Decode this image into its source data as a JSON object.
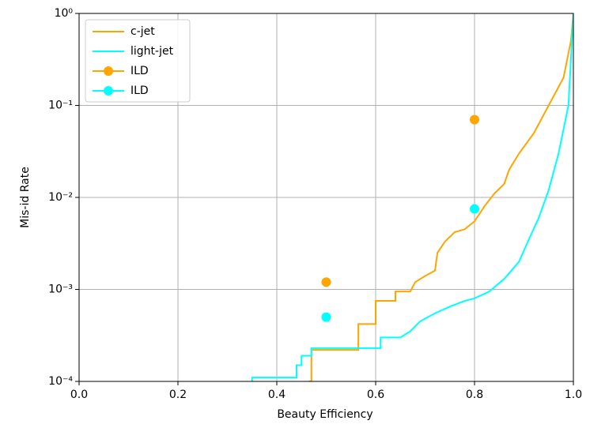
{
  "chart_data": {
    "type": "line",
    "xlabel": "Beauty Efficiency",
    "ylabel": "Mis-id Rate",
    "xlim": [
      0,
      1
    ],
    "ylim": [
      0.0001,
      1
    ],
    "yscale": "log",
    "grid": true,
    "legend": "upper left",
    "xticks": [
      {
        "value": 0,
        "label": "0.0"
      },
      0.2,
      0.4,
      0.6,
      0.8,
      {
        "value": 1,
        "label": "1.0"
      }
    ],
    "yticks": [
      {
        "value": 0.0001,
        "label": "10⁻⁴"
      },
      {
        "value": 0.001,
        "label": "10⁻³"
      },
      {
        "value": 0.01,
        "label": "10⁻²"
      },
      {
        "value": 0.1,
        "label": "10⁻¹"
      },
      {
        "value": 1,
        "label": "10⁰"
      }
    ],
    "series": [
      {
        "name": "c-jet",
        "type": "line",
        "color": "#ffa500",
        "x": [
          0.465,
          0.47,
          0.47,
          0.565,
          0.565,
          0.6,
          0.6,
          0.64,
          0.64,
          0.67,
          0.68,
          0.7,
          0.72,
          0.725,
          0.74,
          0.76,
          0.78,
          0.8,
          0.82,
          0.84,
          0.86,
          0.87,
          0.89,
          0.92,
          0.95,
          0.98,
          0.995,
          1.0
        ],
        "y": [
          0.0001,
          0.0001,
          0.00022,
          0.00022,
          0.00042,
          0.00042,
          0.00075,
          0.00075,
          0.00095,
          0.00095,
          0.0012,
          0.0014,
          0.0016,
          0.0025,
          0.0033,
          0.0042,
          0.0045,
          0.0055,
          0.008,
          0.011,
          0.014,
          0.02,
          0.03,
          0.05,
          0.1,
          0.2,
          0.5,
          1
        ]
      },
      {
        "name": "light-jet",
        "type": "line",
        "color": "#00ffff",
        "x": [
          0.35,
          0.35,
          0.44,
          0.44,
          0.45,
          0.45,
          0.47,
          0.47,
          0.61,
          0.61,
          0.65,
          0.67,
          0.69,
          0.72,
          0.75,
          0.78,
          0.8,
          0.83,
          0.86,
          0.89,
          0.91,
          0.93,
          0.95,
          0.97,
          0.99,
          1.0
        ],
        "y": [
          0.0001,
          0.00011,
          0.00011,
          0.00015,
          0.00015,
          0.00019,
          0.00019,
          0.00023,
          0.00023,
          0.0003,
          0.0003,
          0.00035,
          0.00045,
          0.00055,
          0.00065,
          0.00075,
          0.0008,
          0.00095,
          0.0013,
          0.002,
          0.0035,
          0.006,
          0.012,
          0.03,
          0.1,
          1
        ]
      },
      {
        "name": "ILD",
        "type": "scatter",
        "color": "#ffa500",
        "x": [
          0.5,
          0.8
        ],
        "y": [
          0.0012,
          0.07
        ]
      },
      {
        "name": "ILD",
        "type": "scatter",
        "color": "#00ffff",
        "x": [
          0.5,
          0.8
        ],
        "y": [
          0.0005,
          0.0075
        ]
      }
    ]
  }
}
